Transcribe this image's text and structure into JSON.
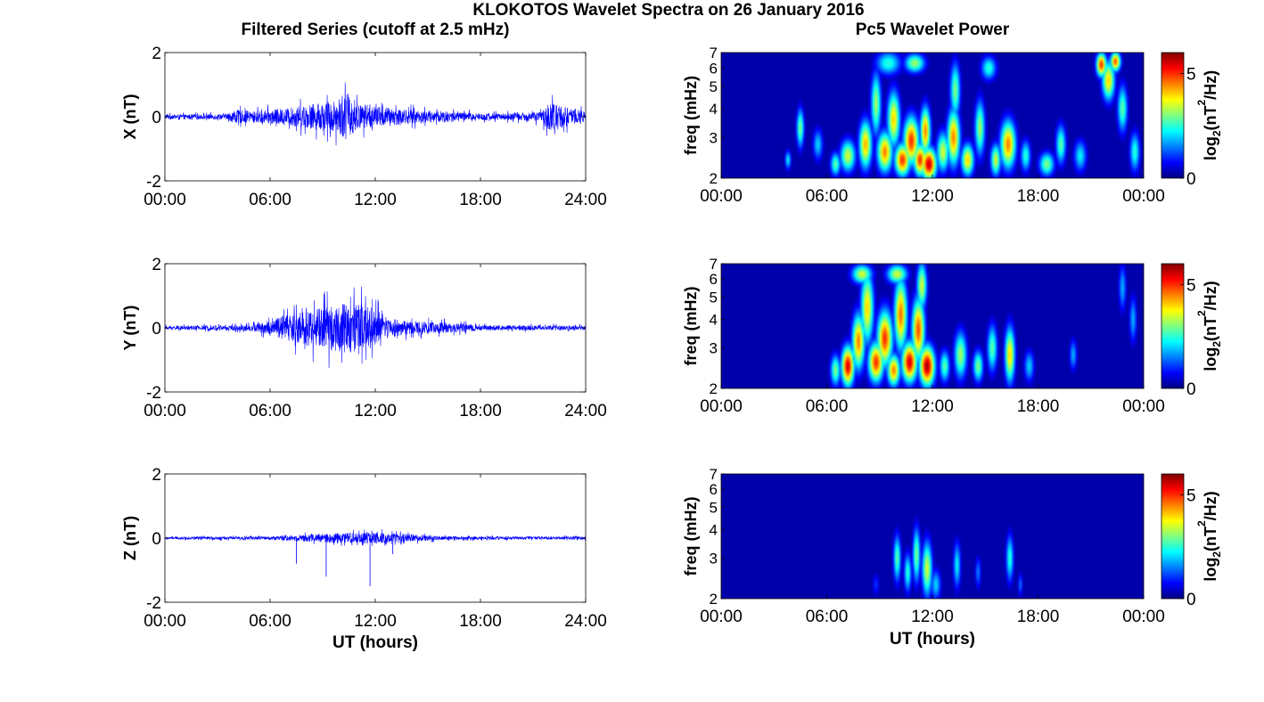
{
  "chart_data": {
    "suptitle": "KLOKOTOS Wavelet Spectra on 26 January 2016",
    "left_title": "Filtered Series (cutoff at 2.5 mHz)",
    "right_title": "Pc5 Wavelet Power",
    "x_label": "UT (hours)",
    "time_series": {
      "type": "line",
      "xlim": [
        0,
        24
      ],
      "ylim": [
        -2,
        2
      ],
      "x_ticks": [
        0,
        6,
        12,
        18,
        24
      ],
      "x_tick_labels": [
        "00:00",
        "06:00",
        "12:00",
        "18:00",
        "24:00"
      ],
      "y_ticks": [
        -2,
        0,
        2
      ],
      "y_tick_labels": [
        "-2",
        "0",
        "2"
      ],
      "line_color": "#0000ff",
      "panels": [
        {
          "component": "X",
          "ylabel": "X (nT)",
          "base_amp": 0.08,
          "envelope": [
            [
              0,
              0.12
            ],
            [
              3.5,
              0.15
            ],
            [
              4,
              0.4
            ],
            [
              5,
              0.3
            ],
            [
              7,
              0.5
            ],
            [
              9,
              0.8
            ],
            [
              10,
              1.0
            ],
            [
              10.4,
              1.4
            ],
            [
              11,
              0.7
            ],
            [
              12,
              0.6
            ],
            [
              13,
              0.5
            ],
            [
              14,
              0.4
            ],
            [
              16,
              0.3
            ],
            [
              18,
              0.2
            ],
            [
              20,
              0.2
            ],
            [
              21.5,
              0.3
            ],
            [
              22,
              0.9
            ],
            [
              23,
              0.5
            ],
            [
              24,
              0.3
            ]
          ]
        },
        {
          "component": "Y",
          "ylabel": "Y (nT)",
          "base_amp": 0.06,
          "envelope": [
            [
              0,
              0.1
            ],
            [
              4,
              0.15
            ],
            [
              5,
              0.2
            ],
            [
              6,
              0.4
            ],
            [
              7,
              0.8
            ],
            [
              8,
              1.0
            ],
            [
              9,
              1.2
            ],
            [
              10,
              1.4
            ],
            [
              11,
              1.4
            ],
            [
              12,
              1.2
            ],
            [
              12.3,
              0.6
            ],
            [
              14,
              0.4
            ],
            [
              16,
              0.3
            ],
            [
              18,
              0.15
            ],
            [
              24,
              0.12
            ]
          ]
        },
        {
          "component": "Z",
          "ylabel": "Z (nT)",
          "base_amp": 0.04,
          "envelope": [
            [
              0,
              0.06
            ],
            [
              6,
              0.1
            ],
            [
              8,
              0.2
            ],
            [
              10,
              0.3
            ],
            [
              12,
              0.3
            ],
            [
              14,
              0.2
            ],
            [
              16,
              0.1
            ],
            [
              24,
              0.08
            ]
          ],
          "spikes": [
            [
              7.5,
              -0.8
            ],
            [
              9.2,
              -1.2
            ],
            [
              11.7,
              -1.5
            ],
            [
              13.0,
              -0.5
            ]
          ]
        }
      ]
    },
    "wavelet": {
      "type": "heatmap",
      "xlim": [
        0,
        24
      ],
      "ylim_mHz": [
        2,
        7
      ],
      "y_scale": "log",
      "x_ticks": [
        0,
        6,
        12,
        18,
        24
      ],
      "x_tick_labels": [
        "00:00",
        "06:00",
        "12:00",
        "18:00",
        "00:00"
      ],
      "y_ticks": [
        2,
        3,
        4,
        5,
        6,
        7
      ],
      "y_tick_labels": [
        "2",
        "3",
        "4",
        "5",
        "6",
        "7"
      ],
      "ylabel": "freq (mHz)",
      "colorbar": {
        "min": 0,
        "max": 6,
        "ticks": [
          0,
          5
        ],
        "tick_labels": [
          "0",
          "5"
        ],
        "label": "log2(nT2/Hz)",
        "colormap": "jet"
      },
      "panels": [
        {
          "component": "X",
          "blobs": [
            [
              3.8,
              2.4,
              0.12,
              0.12,
              2.2
            ],
            [
              4.5,
              3.3,
              0.15,
              0.25,
              3.0
            ],
            [
              5.5,
              2.8,
              0.2,
              0.2,
              2.0
            ],
            [
              6.5,
              2.3,
              0.2,
              0.15,
              2.8
            ],
            [
              7.2,
              2.5,
              0.3,
              0.2,
              3.5
            ],
            [
              8.2,
              2.8,
              0.25,
              0.3,
              4.2
            ],
            [
              8.8,
              4.2,
              0.2,
              0.4,
              3.2
            ],
            [
              9.3,
              2.6,
              0.3,
              0.25,
              4.5
            ],
            [
              9.8,
              3.6,
              0.25,
              0.35,
              4.0
            ],
            [
              10.3,
              2.4,
              0.3,
              0.2,
              5.0
            ],
            [
              10.8,
              2.9,
              0.3,
              0.3,
              5.0
            ],
            [
              11.3,
              2.4,
              0.25,
              0.2,
              5.0
            ],
            [
              11.8,
              2.3,
              0.3,
              0.2,
              5.6
            ],
            [
              11.6,
              3.2,
              0.2,
              0.3,
              4.5
            ],
            [
              12.6,
              2.6,
              0.25,
              0.25,
              3.5
            ],
            [
              13.2,
              3.0,
              0.25,
              0.35,
              4.5
            ],
            [
              13.3,
              4.8,
              0.2,
              0.35,
              3.0
            ],
            [
              14.0,
              2.4,
              0.25,
              0.2,
              4.0
            ],
            [
              14.7,
              3.3,
              0.2,
              0.35,
              3.2
            ],
            [
              15.6,
              2.4,
              0.2,
              0.2,
              3.5
            ],
            [
              16.3,
              2.8,
              0.3,
              0.3,
              4.5
            ],
            [
              17.3,
              2.5,
              0.2,
              0.2,
              2.5
            ],
            [
              18.5,
              2.3,
              0.3,
              0.15,
              3.0
            ],
            [
              19.3,
              2.8,
              0.2,
              0.25,
              2.8
            ],
            [
              20.4,
              2.5,
              0.25,
              0.2,
              2.2
            ],
            [
              21.6,
              6.2,
              0.2,
              0.15,
              5.0
            ],
            [
              22.0,
              5.3,
              0.25,
              0.25,
              4.0
            ],
            [
              22.4,
              6.4,
              0.2,
              0.12,
              4.8
            ],
            [
              22.8,
              4.0,
              0.2,
              0.3,
              2.8
            ],
            [
              23.5,
              2.6,
              0.2,
              0.25,
              2.5
            ],
            [
              9.5,
              6.3,
              0.5,
              0.15,
              2.5
            ],
            [
              11.0,
              6.3,
              0.4,
              0.12,
              3.2
            ],
            [
              15.2,
              6.0,
              0.3,
              0.15,
              2.5
            ]
          ]
        },
        {
          "component": "Y",
          "blobs": [
            [
              6.5,
              2.4,
              0.2,
              0.2,
              3.0
            ],
            [
              7.2,
              2.5,
              0.25,
              0.25,
              5.5
            ],
            [
              7.8,
              3.2,
              0.25,
              0.35,
              4.5
            ],
            [
              8.3,
              4.5,
              0.25,
              0.45,
              4.0
            ],
            [
              8.8,
              2.6,
              0.3,
              0.25,
              5.0
            ],
            [
              9.3,
              3.3,
              0.3,
              0.35,
              5.0
            ],
            [
              9.8,
              2.4,
              0.25,
              0.2,
              4.5
            ],
            [
              10.2,
              4.2,
              0.25,
              0.45,
              4.6
            ],
            [
              10.7,
              2.6,
              0.3,
              0.25,
              5.5
            ],
            [
              11.2,
              3.6,
              0.25,
              0.4,
              4.8
            ],
            [
              11.7,
              2.5,
              0.3,
              0.25,
              5.8
            ],
            [
              11.4,
              5.6,
              0.2,
              0.3,
              3.5
            ],
            [
              8.0,
              6.3,
              0.4,
              0.12,
              3.5
            ],
            [
              10.0,
              6.3,
              0.4,
              0.12,
              3.5
            ],
            [
              12.7,
              2.5,
              0.2,
              0.2,
              2.8
            ],
            [
              13.6,
              2.8,
              0.25,
              0.3,
              3.2
            ],
            [
              14.6,
              2.5,
              0.2,
              0.2,
              3.0
            ],
            [
              15.4,
              3.0,
              0.2,
              0.3,
              2.8
            ],
            [
              16.4,
              2.8,
              0.2,
              0.35,
              4.0
            ],
            [
              17.5,
              2.5,
              0.2,
              0.2,
              2.0
            ],
            [
              20.0,
              2.8,
              0.15,
              0.2,
              1.8
            ],
            [
              22.8,
              5.5,
              0.15,
              0.3,
              1.8
            ],
            [
              23.4,
              4.0,
              0.15,
              0.3,
              1.8
            ]
          ]
        },
        {
          "component": "Z",
          "blobs": [
            [
              10.0,
              3.0,
              0.15,
              0.3,
              2.8
            ],
            [
              10.6,
              2.6,
              0.15,
              0.25,
              2.5
            ],
            [
              11.1,
              3.1,
              0.15,
              0.35,
              3.0
            ],
            [
              11.7,
              2.7,
              0.2,
              0.35,
              3.5
            ],
            [
              12.2,
              2.3,
              0.2,
              0.2,
              2.0
            ],
            [
              13.4,
              2.8,
              0.15,
              0.3,
              2.2
            ],
            [
              14.6,
              2.6,
              0.12,
              0.2,
              1.5
            ],
            [
              16.4,
              3.0,
              0.15,
              0.3,
              2.5
            ],
            [
              17.0,
              2.3,
              0.1,
              0.15,
              1.4
            ],
            [
              8.8,
              2.3,
              0.15,
              0.15,
              1.0
            ]
          ]
        }
      ]
    }
  }
}
